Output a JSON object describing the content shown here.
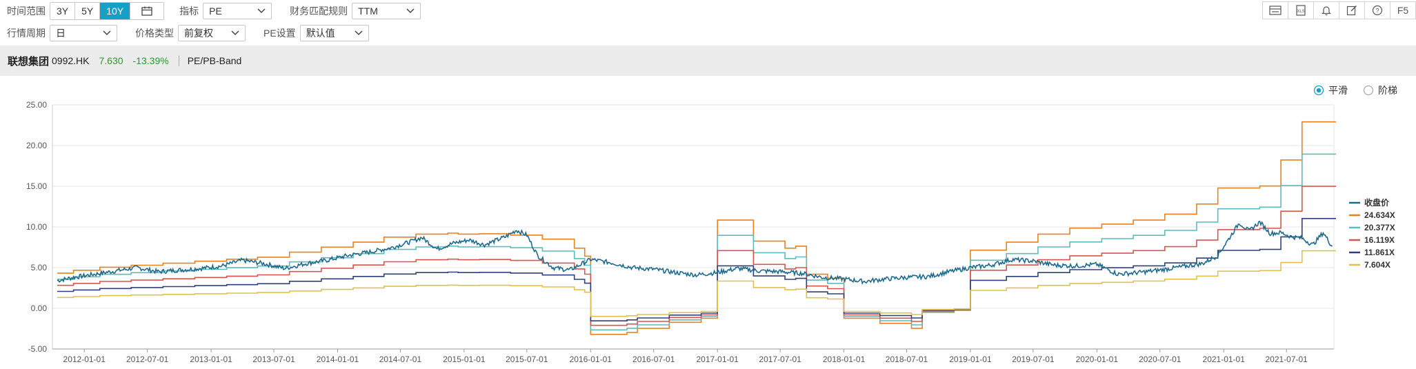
{
  "toolbar": {
    "time_range_label": "时间范围",
    "time_range_options": [
      "3Y",
      "5Y",
      "10Y"
    ],
    "time_range_active": "10Y",
    "indicator_label": "指标",
    "indicator_value": "PE",
    "fin_rule_label": "财务匹配规则",
    "fin_rule_value": "TTM",
    "period_label": "行情周期",
    "period_value": "日",
    "price_type_label": "价格类型",
    "price_type_value": "前复权",
    "pe_setting_label": "PE设置",
    "pe_setting_value": "默认值",
    "f5_label": "F5",
    "icons": [
      "layout-icon",
      "excel-icon",
      "bell-icon",
      "edit-icon",
      "help-icon"
    ]
  },
  "stock": {
    "name": "联想集团",
    "code": "0992.HK",
    "price": "7.630",
    "change": "-13.39%",
    "tool": "PE/PB-Band"
  },
  "mode": {
    "smooth_label": "平滑",
    "step_label": "阶梯",
    "selected": "smooth"
  },
  "chart_data": {
    "type": "line",
    "ylim": [
      -5,
      25
    ],
    "yticks": [
      "25.00",
      "20.00",
      "15.00",
      "10.00",
      "5.00",
      "0.00",
      "-5.00"
    ],
    "ytick_values": [
      25,
      20,
      15,
      10,
      5,
      0,
      -5
    ],
    "xlim": [
      "2011-10-01",
      "2021-11-15"
    ],
    "xticks": [
      "2012-01-01",
      "2012-07-01",
      "2013-01-01",
      "2013-07-01",
      "2014-01-01",
      "2014-07-01",
      "2015-01-01",
      "2015-07-01",
      "2016-01-01",
      "2016-07-01",
      "2017-01-01",
      "2017-07-01",
      "2018-01-01",
      "2018-07-01",
      "2019-01-01",
      "2019-07-01",
      "2020-01-01",
      "2020-07-01",
      "2021-01-01",
      "2021-07-01"
    ],
    "legend_position": "right",
    "grid": "horizontal",
    "colors": {
      "close": "#1d6a8c",
      "b1": "#e8821e",
      "b2": "#5bbcbc",
      "b3": "#d9534f",
      "b4": "#2f3f7a",
      "b5": "#e3c04a"
    },
    "close_series": {
      "name": "收盘价",
      "points": [
        [
          "2011-10-15",
          3.4
        ],
        [
          "2011-12-01",
          3.8
        ],
        [
          "2012-02-01",
          4.2
        ],
        [
          "2012-04-01",
          4.6
        ],
        [
          "2012-06-01",
          5.0
        ],
        [
          "2012-08-01",
          4.5
        ],
        [
          "2012-10-01",
          4.7
        ],
        [
          "2012-12-01",
          4.9
        ],
        [
          "2013-02-01",
          5.2
        ],
        [
          "2013-04-01",
          5.9
        ],
        [
          "2013-06-01",
          5.5
        ],
        [
          "2013-08-01",
          4.9
        ],
        [
          "2013-10-01",
          5.5
        ],
        [
          "2013-12-01",
          5.9
        ],
        [
          "2014-02-01",
          6.5
        ],
        [
          "2014-04-01",
          6.9
        ],
        [
          "2014-06-01",
          7.4
        ],
        [
          "2014-08-01",
          8.2
        ],
        [
          "2014-09-01",
          8.7
        ],
        [
          "2014-10-15",
          7.3
        ],
        [
          "2014-12-01",
          8.0
        ],
        [
          "2015-01-15",
          8.4
        ],
        [
          "2015-03-01",
          7.8
        ],
        [
          "2015-05-01",
          8.8
        ],
        [
          "2015-06-01",
          9.6
        ],
        [
          "2015-07-01",
          9.0
        ],
        [
          "2015-08-01",
          6.5
        ],
        [
          "2015-09-15",
          5.0
        ],
        [
          "2015-11-01",
          4.7
        ],
        [
          "2016-01-01",
          6.0
        ],
        [
          "2016-03-01",
          5.6
        ],
        [
          "2016-05-01",
          5.0
        ],
        [
          "2016-07-01",
          4.8
        ],
        [
          "2016-09-01",
          4.4
        ],
        [
          "2016-11-01",
          4.1
        ],
        [
          "2017-01-01",
          4.4
        ],
        [
          "2017-03-01",
          4.9
        ],
        [
          "2017-05-01",
          4.6
        ],
        [
          "2017-07-01",
          4.5
        ],
        [
          "2017-09-01",
          4.3
        ],
        [
          "2017-11-01",
          3.8
        ],
        [
          "2018-01-01",
          3.6
        ],
        [
          "2018-03-01",
          3.3
        ],
        [
          "2018-05-01",
          3.6
        ],
        [
          "2018-07-01",
          3.8
        ],
        [
          "2018-09-01",
          3.9
        ],
        [
          "2018-11-01",
          4.5
        ],
        [
          "2019-01-01",
          5.0
        ],
        [
          "2019-03-01",
          5.3
        ],
        [
          "2019-05-01",
          6.0
        ],
        [
          "2019-07-01",
          5.8
        ],
        [
          "2019-09-01",
          5.3
        ],
        [
          "2019-11-01",
          5.2
        ],
        [
          "2020-01-01",
          5.4
        ],
        [
          "2020-03-01",
          4.2
        ],
        [
          "2020-05-01",
          4.4
        ],
        [
          "2020-07-01",
          4.7
        ],
        [
          "2020-09-01",
          5.1
        ],
        [
          "2020-11-01",
          5.5
        ],
        [
          "2020-12-15",
          6.5
        ],
        [
          "2021-01-15",
          8.5
        ],
        [
          "2021-02-15",
          10.5
        ],
        [
          "2021-03-15",
          9.5
        ],
        [
          "2021-04-15",
          10.6
        ],
        [
          "2021-05-15",
          9.2
        ],
        [
          "2021-06-15",
          9.3
        ],
        [
          "2021-07-15",
          8.8
        ],
        [
          "2021-08-15",
          8.6
        ],
        [
          "2021-09-15",
          7.8
        ],
        [
          "2021-10-15",
          9.3
        ],
        [
          "2021-11-10",
          7.6
        ]
      ]
    },
    "band_series": [
      {
        "name": "24.634X",
        "key": "b1"
      },
      {
        "name": "20.377X",
        "key": "b2"
      },
      {
        "name": "16.119X",
        "key": "b3"
      },
      {
        "name": "11.861X",
        "key": "b4"
      },
      {
        "name": "7.604X",
        "key": "b5"
      }
    ],
    "band_multipliers": [
      24.634,
      20.377,
      16.119,
      11.861,
      7.604
    ],
    "eps_steps": [
      [
        "2011-10-15",
        0.175
      ],
      [
        "2011-12-01",
        0.19
      ],
      [
        "2012-02-15",
        0.205
      ],
      [
        "2012-05-15",
        0.215
      ],
      [
        "2012-08-15",
        0.225
      ],
      [
        "2012-11-15",
        0.235
      ],
      [
        "2013-02-15",
        0.245
      ],
      [
        "2013-05-15",
        0.255
      ],
      [
        "2013-08-15",
        0.28
      ],
      [
        "2013-11-15",
        0.305
      ],
      [
        "2014-02-15",
        0.33
      ],
      [
        "2014-05-15",
        0.355
      ],
      [
        "2014-08-15",
        0.37
      ],
      [
        "2014-11-15",
        0.375
      ],
      [
        "2014-12-15",
        0.37
      ],
      [
        "2015-02-15",
        0.372
      ],
      [
        "2015-05-15",
        0.365
      ],
      [
        "2015-08-15",
        0.345
      ],
      [
        "2015-11-15",
        0.3
      ],
      [
        "2015-12-15",
        0.26
      ],
      [
        "2016-01-01",
        -0.13
      ],
      [
        "2016-04-15",
        -0.12
      ],
      [
        "2016-05-15",
        -0.1
      ],
      [
        "2016-08-15",
        -0.07
      ],
      [
        "2016-11-15",
        -0.05
      ],
      [
        "2017-01-01",
        0.44
      ],
      [
        "2017-04-15",
        0.335
      ],
      [
        "2017-07-15",
        0.3
      ],
      [
        "2017-08-15",
        0.31
      ],
      [
        "2017-09-15",
        0.17
      ],
      [
        "2017-11-15",
        0.15
      ],
      [
        "2018-01-01",
        -0.05
      ],
      [
        "2018-04-15",
        -0.075
      ],
      [
        "2018-07-15",
        -0.1
      ],
      [
        "2018-08-15",
        -0.02
      ],
      [
        "2018-11-15",
        -0.01
      ],
      [
        "2019-01-01",
        0.29
      ],
      [
        "2019-04-15",
        0.33
      ],
      [
        "2019-07-15",
        0.37
      ],
      [
        "2019-10-15",
        0.4
      ],
      [
        "2020-01-15",
        0.42
      ],
      [
        "2020-04-15",
        0.44
      ],
      [
        "2020-07-15",
        0.47
      ],
      [
        "2020-10-15",
        0.52
      ],
      [
        "2020-12-15",
        0.6
      ],
      [
        "2021-04-15",
        0.61
      ],
      [
        "2021-06-15",
        0.74
      ],
      [
        "2021-08-15",
        0.93
      ],
      [
        "2021-11-15",
        0.93
      ]
    ]
  }
}
